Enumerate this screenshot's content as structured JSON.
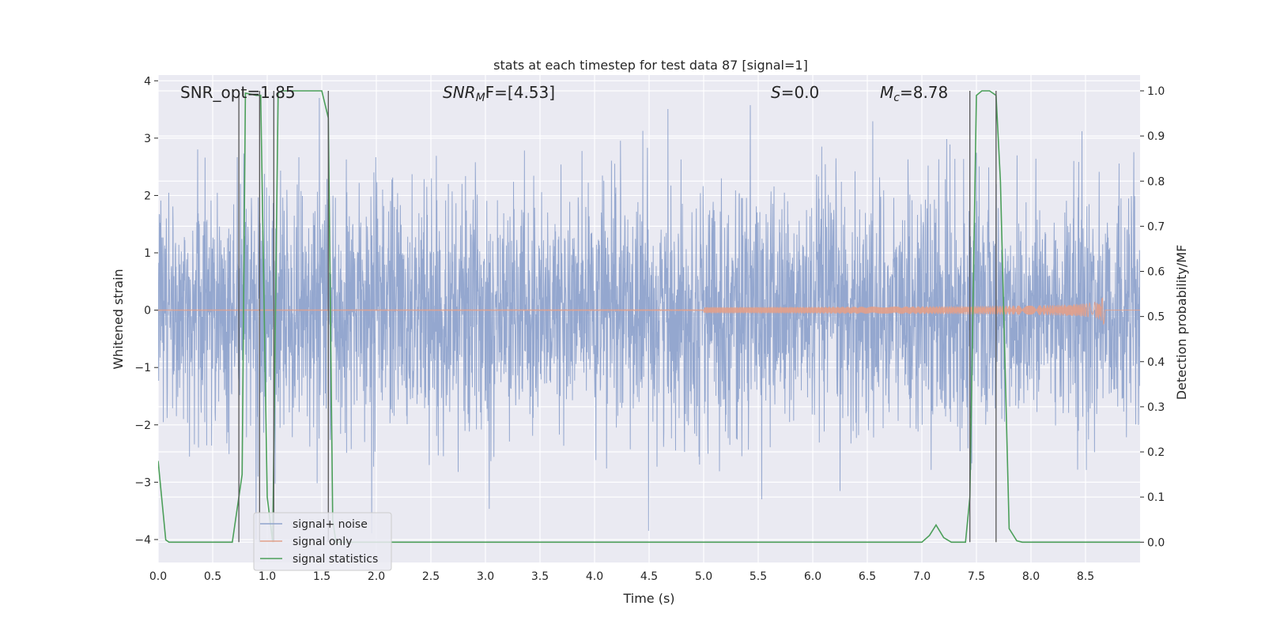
{
  "chart_data": {
    "type": "line",
    "title": "stats at each timestep for test data 87 [signal=1]",
    "xlabel": "Time (s)",
    "ylabel": "Whitened strain",
    "y2label": "Detection probability/MF",
    "xlim": [
      0.0,
      9.0
    ],
    "ylim": [
      -4.4,
      4.1
    ],
    "y2lim": [
      -0.045,
      1.035
    ],
    "xticks": [
      "0.0",
      "0.5",
      "1.0",
      "1.5",
      "2.0",
      "2.5",
      "3.0",
      "3.5",
      "4.0",
      "4.5",
      "5.0",
      "5.5",
      "6.0",
      "6.5",
      "7.0",
      "7.5",
      "8.0",
      "8.5"
    ],
    "yticks": [
      "−4",
      "−3",
      "−2",
      "−1",
      "0",
      "1",
      "2",
      "3",
      "4"
    ],
    "y2ticks": [
      "0.0",
      "0.1",
      "0.2",
      "0.3",
      "0.4",
      "0.5",
      "0.6",
      "0.7",
      "0.8",
      "0.9",
      "1.0"
    ],
    "grid": true,
    "legend_position": "lower-left",
    "annotations": {
      "snr_opt": "SNR_opt=1.85",
      "snr_mf_main": "SNR",
      "snr_mf_sub": "M",
      "snr_mf_tail": "F=[4.53]",
      "s_var": "S",
      "s_val": "=0.0",
      "mc_var": "M",
      "mc_sub": "c",
      "mc_val": "=8.78"
    },
    "series": [
      {
        "name": "signal+ noise",
        "color": "#8fa3cc",
        "axis": "left",
        "approx_range": [
          -4.0,
          3.7
        ],
        "note_stat": "dense noise"
      },
      {
        "name": "signal only",
        "color": "#e2a08a",
        "axis": "left",
        "chirp_end_time": 8.67,
        "chirp_peak_amplitude": 0.3
      },
      {
        "name": "signal statistics",
        "color": "#4c9f5a",
        "axis": "right",
        "x": [
          0.0,
          0.07,
          0.1,
          0.2,
          0.68,
          0.77,
          0.8,
          0.9,
          0.94,
          1.0,
          1.05,
          1.1,
          1.13,
          1.2,
          1.5,
          1.56,
          1.6,
          1.63,
          2.0,
          6.5,
          7.0,
          7.07,
          7.13,
          7.2,
          7.27,
          7.4,
          7.44,
          7.5,
          7.55,
          7.62,
          7.68,
          7.72,
          7.8,
          7.87,
          7.92,
          8.5,
          9.0
        ],
        "y": [
          0.18,
          0.005,
          0.0,
          0.0,
          0.0,
          0.15,
          0.995,
          0.99,
          0.99,
          0.1,
          0.0,
          0.995,
          1.0,
          1.0,
          1.0,
          0.94,
          0.05,
          0.0,
          0.0,
          0.0,
          0.0,
          0.015,
          0.038,
          0.01,
          0.0,
          0.0,
          0.1,
          0.99,
          1.0,
          1.0,
          0.99,
          0.8,
          0.03,
          0.003,
          0.0,
          0.0,
          0.0
        ]
      }
    ],
    "vertical_markers": [
      0.74,
      0.93,
      1.06,
      1.56,
      7.44,
      7.68
    ]
  }
}
